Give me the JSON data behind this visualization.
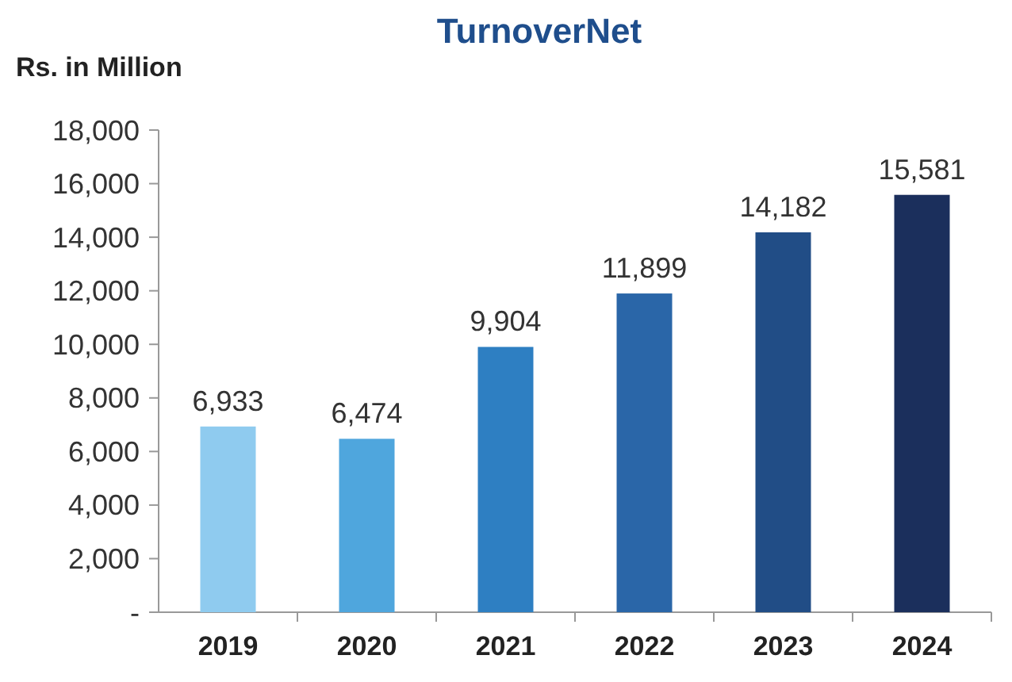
{
  "chart_data": {
    "type": "bar",
    "title": "TurnoverNet",
    "ylabel": "Rs. in Million",
    "categories": [
      "2019",
      "2020",
      "2021",
      "2022",
      "2023",
      "2024"
    ],
    "values": [
      6933,
      6474,
      9904,
      11899,
      14182,
      15581
    ],
    "colors": [
      "#8fcbef",
      "#4fa6dd",
      "#2e7fc2",
      "#2a66a8",
      "#214d86",
      "#1b2f5c"
    ],
    "ylim": [
      0,
      18000
    ],
    "yticks": [
      {
        "value": 0,
        "label": "-"
      },
      {
        "value": 2000,
        "label": "2,000"
      },
      {
        "value": 4000,
        "label": "4,000"
      },
      {
        "value": 6000,
        "label": "6,000"
      },
      {
        "value": 8000,
        "label": "8,000"
      },
      {
        "value": 10000,
        "label": "10,000"
      },
      {
        "value": 12000,
        "label": "12,000"
      },
      {
        "value": 14000,
        "label": "14,000"
      },
      {
        "value": 16000,
        "label": "16,000"
      },
      {
        "value": 18000,
        "label": "18,000"
      }
    ],
    "value_labels": [
      "6,933",
      "6,474",
      "9,904",
      "11,899",
      "14,182",
      "15,581"
    ]
  }
}
